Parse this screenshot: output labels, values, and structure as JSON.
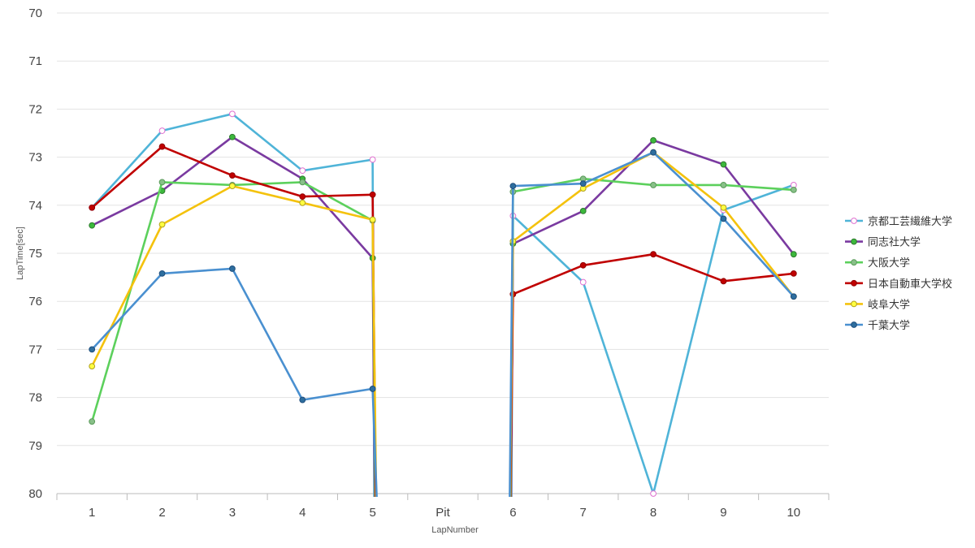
{
  "chart_data": {
    "type": "line",
    "xlabel": "LapNumber",
    "ylabel": "LapTime[sec]",
    "categories": [
      "1",
      "2",
      "3",
      "4",
      "5",
      "Pit",
      "6",
      "7",
      "8",
      "9",
      "10"
    ],
    "ylim": [
      70,
      80
    ],
    "y_reversed": true,
    "y_ticks": [
      "70",
      "71",
      "72",
      "73",
      "74",
      "75",
      "76",
      "77",
      "78",
      "79",
      "80"
    ],
    "grid": true,
    "legend_position": "right",
    "series": [
      {
        "name": "京都工芸繊維大学",
        "color": "#4fb4d8",
        "marker_fill": "#ffffff",
        "marker_stroke": "#e070d0",
        "values": [
          74.05,
          72.45,
          72.1,
          73.28,
          73.05,
          null,
          74.22,
          75.6,
          80.0,
          74.1,
          73.58
        ],
        "drop_after": 4,
        "rise_before": 6
      },
      {
        "name": "同志社大学",
        "color": "#7a3aa0",
        "marker_fill": "#3cb83c",
        "marker_stroke": "#2e7a2e",
        "values": [
          74.42,
          73.7,
          72.58,
          73.45,
          75.1,
          null,
          74.8,
          74.12,
          72.65,
          73.15,
          75.02
        ],
        "drop_after": 4,
        "rise_before": 6
      },
      {
        "name": "大阪大学",
        "color": "#5cd05c",
        "marker_fill": "#88c088",
        "marker_stroke": "#5a9a5a",
        "values": [
          78.5,
          73.52,
          73.58,
          73.52,
          74.32,
          null,
          73.72,
          73.45,
          73.58,
          73.58,
          73.68
        ],
        "drop_after": 4,
        "rise_before": 6
      },
      {
        "name": "日本自動車大学校",
        "color": "#c00000",
        "marker_fill": "#c00000",
        "marker_stroke": "#900000",
        "values": [
          74.05,
          72.78,
          73.38,
          73.82,
          73.78,
          null,
          75.85,
          75.25,
          75.02,
          75.58,
          75.42
        ],
        "drop_after": 4,
        "rise_before": 6
      },
      {
        "name": "岐阜大学",
        "color": "#f4c20d",
        "marker_fill": "#ffff40",
        "marker_stroke": "#b0a020",
        "values": [
          77.35,
          74.4,
          73.6,
          73.95,
          74.3,
          null,
          74.75,
          73.65,
          72.9,
          74.05,
          75.9
        ],
        "drop_after": 4,
        "rise_before": 6
      },
      {
        "name": "千葉大学",
        "color": "#4a90d0",
        "marker_fill": "#2e6e9e",
        "marker_stroke": "#1e4e7e",
        "values": [
          77.0,
          75.42,
          75.32,
          78.05,
          77.82,
          null,
          73.6,
          73.55,
          72.9,
          74.28,
          75.9
        ],
        "drop_after": 4,
        "rise_before": 6
      }
    ]
  }
}
